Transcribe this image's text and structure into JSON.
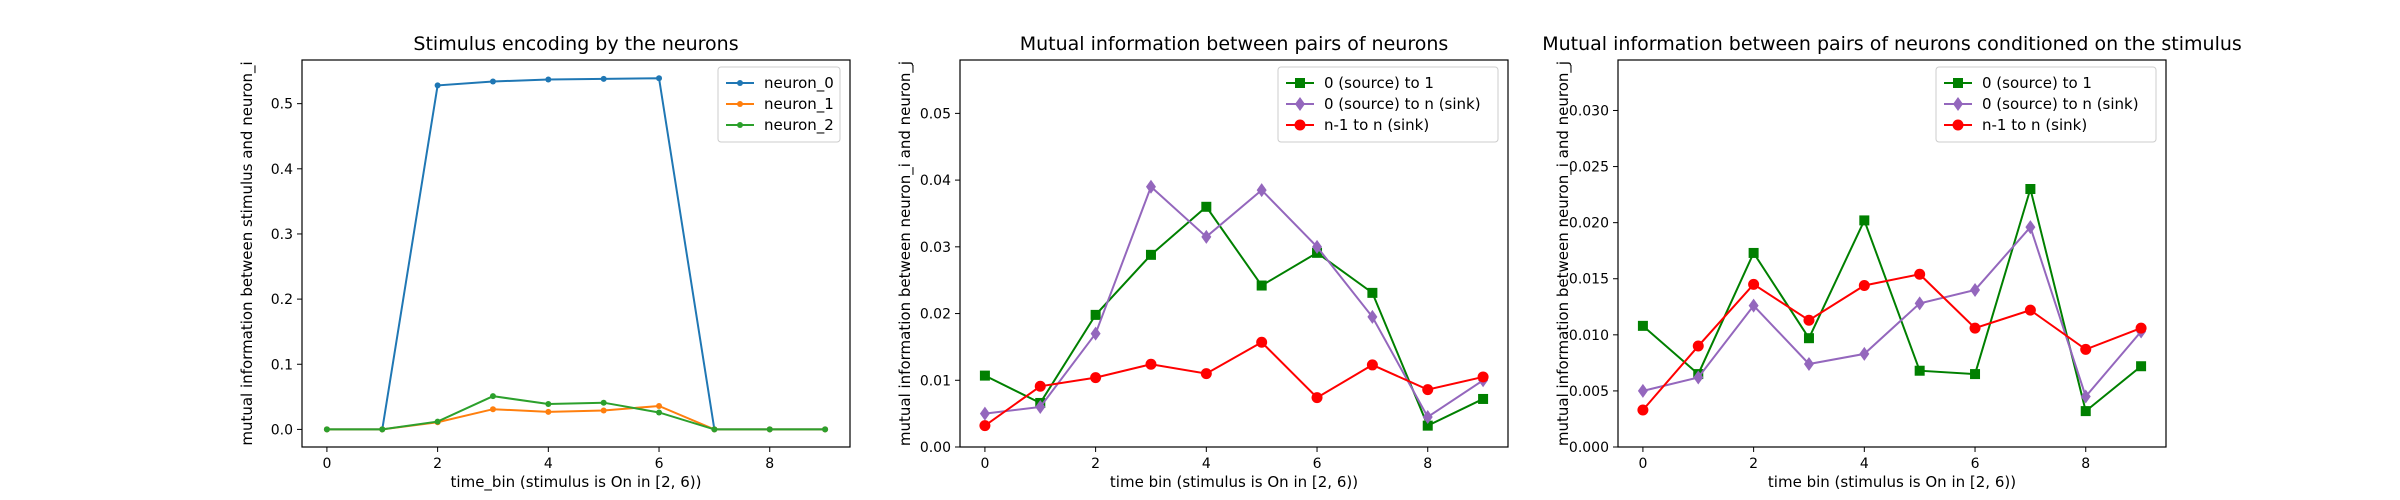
{
  "chart_data": [
    {
      "type": "line",
      "title": "Stimulus encoding by the neurons",
      "xlabel": "time_bin (stimulus is On in [2, 6))",
      "ylabel": "mutual information between stimulus and neuron_i",
      "xlim": [
        -0.45,
        9.45
      ],
      "ylim": [
        -0.027,
        0.567
      ],
      "xticks": [
        0,
        2,
        4,
        6,
        8
      ],
      "yticks": [
        0.0,
        0.1,
        0.2,
        0.3,
        0.4,
        0.5
      ],
      "ytick_decimals": 1,
      "legend": "top-right",
      "grid": false,
      "x": [
        0,
        1,
        2,
        3,
        4,
        5,
        6,
        7,
        8,
        9
      ],
      "series": [
        {
          "name": "neuron_0",
          "color": "#1f77b4",
          "marker": "dot",
          "values": [
            0.0,
            0.0,
            0.528,
            0.534,
            0.537,
            0.538,
            0.539,
            0.0,
            0.0,
            0.0
          ]
        },
        {
          "name": "neuron_1",
          "color": "#ff7f0e",
          "marker": "dot",
          "values": [
            0.0,
            0.0,
            0.011,
            0.031,
            0.027,
            0.029,
            0.036,
            0.0,
            0.0,
            0.0
          ]
        },
        {
          "name": "neuron_2",
          "color": "#2ca02c",
          "marker": "dot",
          "values": [
            0.0,
            0.0,
            0.012,
            0.051,
            0.039,
            0.041,
            0.026,
            0.0,
            0.0,
            0.0
          ]
        }
      ]
    },
    {
      "type": "line",
      "title": "Mutual information between pairs of neurons",
      "xlabel": "time bin (stimulus is On in [2, 6))",
      "ylabel": "mutual information between neuron_i and neuron_j",
      "xlim": [
        -0.45,
        9.45
      ],
      "ylim": [
        0.0,
        0.058
      ],
      "xticks": [
        0,
        2,
        4,
        6,
        8
      ],
      "yticks": [
        0.0,
        0.01,
        0.02,
        0.03,
        0.04,
        0.05
      ],
      "ytick_decimals": 2,
      "legend": "top-right",
      "grid": false,
      "x": [
        0,
        1,
        2,
        3,
        4,
        5,
        6,
        7,
        8,
        9
      ],
      "series": [
        {
          "name": "0 (source) to 1",
          "color": "#008000",
          "marker": "square",
          "values": [
            0.0107,
            0.0066,
            0.0198,
            0.0288,
            0.036,
            0.0242,
            0.0291,
            0.0231,
            0.0032,
            0.0072
          ]
        },
        {
          "name": "0 (source) to n (sink)",
          "color": "#9467bd",
          "marker": "diamond",
          "values": [
            0.005,
            0.006,
            0.017,
            0.039,
            0.0315,
            0.0385,
            0.03,
            0.0195,
            0.0045,
            0.01
          ]
        },
        {
          "name": "n-1 to n (sink)",
          "color": "#ff0000",
          "marker": "circle",
          "values": [
            0.0032,
            0.0091,
            0.0104,
            0.0124,
            0.011,
            0.0157,
            0.0074,
            0.0123,
            0.0086,
            0.0105
          ]
        }
      ]
    },
    {
      "type": "line",
      "title": "Mutual information between pairs of neurons conditioned on the stimulus",
      "xlabel": "time bin (stimulus is On in [2, 6))",
      "ylabel": "mutual information between neuron_i and neuron_j",
      "xlim": [
        -0.45,
        9.45
      ],
      "ylim": [
        0.0,
        0.0345
      ],
      "xticks": [
        0,
        2,
        4,
        6,
        8
      ],
      "yticks": [
        0.0,
        0.005,
        0.01,
        0.015,
        0.02,
        0.025,
        0.03
      ],
      "ytick_decimals": 3,
      "legend": "top-right",
      "grid": false,
      "x": [
        0,
        1,
        2,
        3,
        4,
        5,
        6,
        7,
        8,
        9
      ],
      "series": [
        {
          "name": "0 (source) to 1",
          "color": "#008000",
          "marker": "square",
          "values": [
            0.0108,
            0.0065,
            0.0173,
            0.0097,
            0.0202,
            0.0068,
            0.0065,
            0.023,
            0.0032,
            0.0072
          ]
        },
        {
          "name": "0 (source) to n (sink)",
          "color": "#9467bd",
          "marker": "diamond",
          "values": [
            0.005,
            0.0062,
            0.0126,
            0.0074,
            0.0083,
            0.0128,
            0.014,
            0.0196,
            0.0045,
            0.0103
          ]
        },
        {
          "name": "n-1 to n (sink)",
          "color": "#ff0000",
          "marker": "circle",
          "values": [
            0.0033,
            0.009,
            0.0145,
            0.0113,
            0.0144,
            0.0154,
            0.0106,
            0.0122,
            0.0087,
            0.0106
          ]
        }
      ]
    }
  ]
}
